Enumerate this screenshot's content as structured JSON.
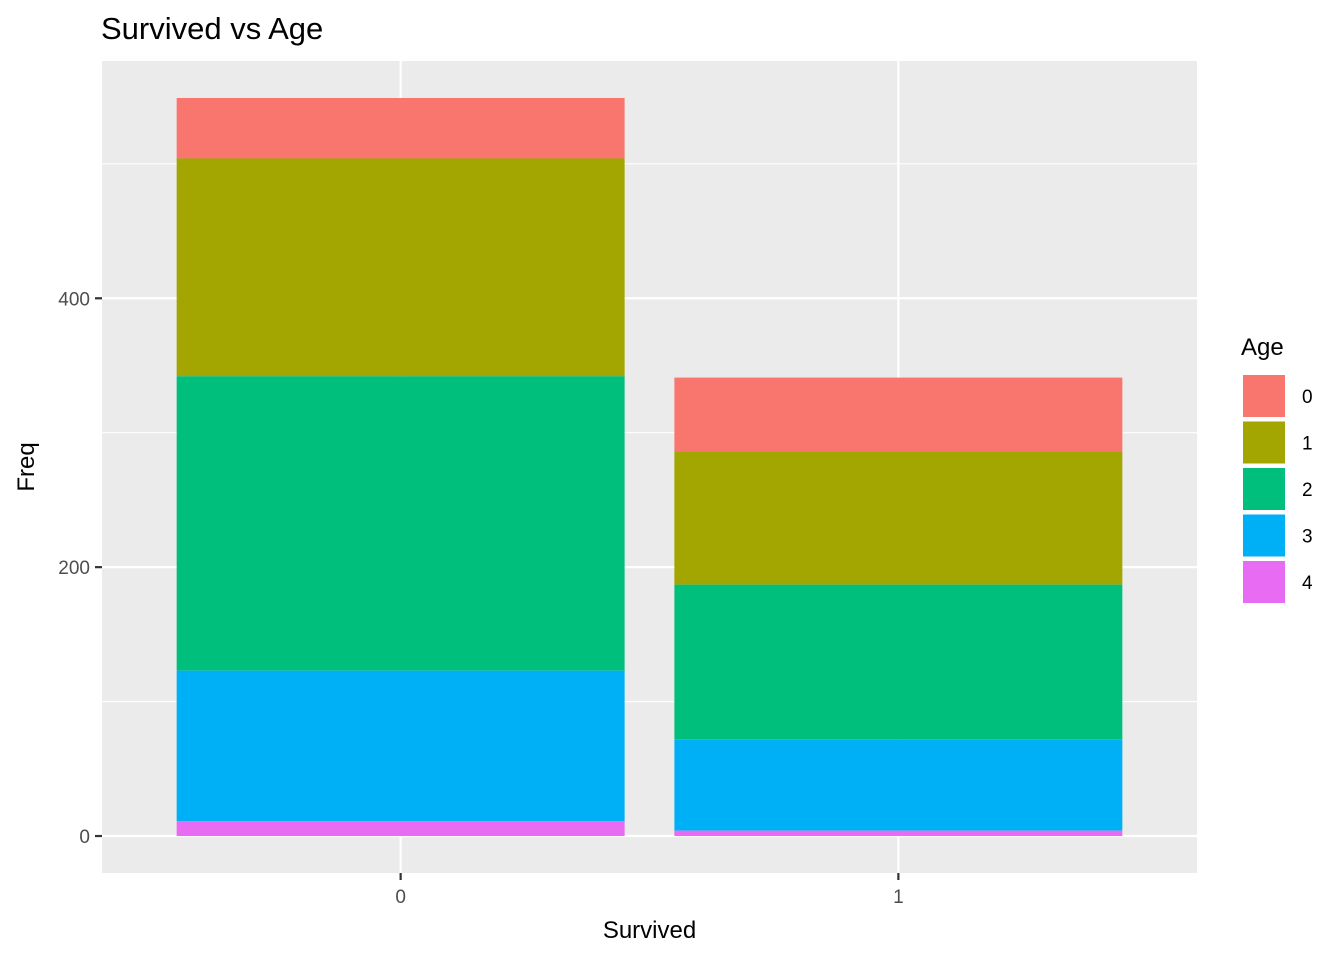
{
  "chart_data": {
    "type": "bar",
    "stacked": true,
    "title": "Survived vs Age",
    "xlabel": "Survived",
    "ylabel": "Freq",
    "categories": [
      "0",
      "1"
    ],
    "yticks": [
      0,
      200,
      400
    ],
    "ylim": [
      -27.5,
      576.5
    ],
    "grid": true,
    "legend": {
      "title": "Age",
      "position": "right"
    },
    "series": [
      {
        "name": "0",
        "color": "#F8766D",
        "values": [
          45,
          55
        ]
      },
      {
        "name": "1",
        "color": "#A3A500",
        "values": [
          162,
          99
        ]
      },
      {
        "name": "2",
        "color": "#00BF7D",
        "values": [
          219,
          115
        ]
      },
      {
        "name": "3",
        "color": "#00B0F6",
        "values": [
          112,
          68
        ]
      },
      {
        "name": "4",
        "color": "#E76BF3",
        "values": [
          11,
          4
        ]
      }
    ]
  }
}
